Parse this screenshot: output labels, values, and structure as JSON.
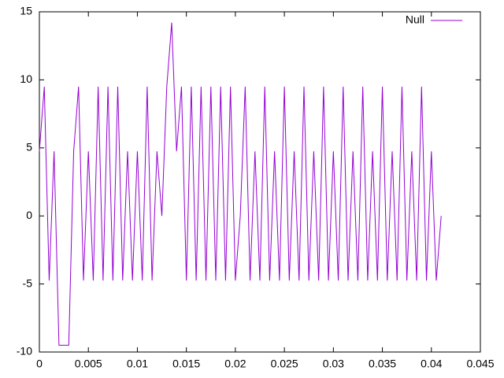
{
  "chart_data": {
    "type": "line",
    "x": [
      0,
      0.0005,
      0.001,
      0.0015,
      0.002,
      0.0025,
      0.003,
      0.0035,
      0.004,
      0.0045,
      0.005,
      0.0055,
      0.006,
      0.0065,
      0.007,
      0.0075,
      0.008,
      0.0085,
      0.009,
      0.0095,
      0.01,
      0.0105,
      0.011,
      0.0115,
      0.012,
      0.0125,
      0.013,
      0.0135,
      0.014,
      0.0145,
      0.015,
      0.0155,
      0.016,
      0.0165,
      0.017,
      0.0175,
      0.018,
      0.0185,
      0.019,
      0.0195,
      0.02,
      0.0205,
      0.021,
      0.0215,
      0.022,
      0.0225,
      0.023,
      0.0235,
      0.024,
      0.0245,
      0.025,
      0.0255,
      0.026,
      0.0265,
      0.027,
      0.0275,
      0.028,
      0.0285,
      0.029,
      0.0295,
      0.03,
      0.0305,
      0.031,
      0.0315,
      0.032,
      0.0325,
      0.033,
      0.0335,
      0.034,
      0.0345,
      0.035,
      0.0355,
      0.036,
      0.0365,
      0.037,
      0.0375,
      0.038,
      0.0385,
      0.039,
      0.0395,
      0.04,
      0.0405,
      0.041
    ],
    "series": [
      {
        "name": "Null",
        "color": "#9400d3",
        "values": [
          4.75,
          9.5,
          -4.75,
          4.75,
          -9.5,
          -9.5,
          -9.5,
          4.75,
          9.5,
          -4.75,
          4.75,
          -4.75,
          9.5,
          -4.75,
          9.5,
          -4.75,
          9.5,
          -4.75,
          4.75,
          -4.75,
          4.75,
          -4.75,
          9.5,
          -4.75,
          4.75,
          0,
          9.5,
          14.2,
          4.75,
          9.5,
          -4.75,
          9.5,
          -4.75,
          9.5,
          -4.75,
          9.5,
          -4.75,
          9.5,
          -4.75,
          9.5,
          -4.75,
          0,
          9.5,
          -4.75,
          4.75,
          -4.75,
          9.5,
          -4.75,
          4.75,
          -4.75,
          9.5,
          -4.75,
          4.75,
          -4.75,
          9.5,
          -4.75,
          4.75,
          -4.75,
          9.5,
          -4.75,
          4.75,
          -4.75,
          9.5,
          -4.75,
          4.75,
          -4.75,
          9.5,
          -4.75,
          4.75,
          -4.75,
          9.5,
          -4.75,
          4.75,
          -4.75,
          9.5,
          -4.75,
          4.75,
          -4.75,
          9.5,
          -4.75,
          4.75,
          -4.75,
          0
        ]
      }
    ],
    "xlim": [
      0,
      0.045
    ],
    "xticks": [
      0,
      0.005,
      0.01,
      0.015,
      0.02,
      0.025,
      0.03,
      0.035,
      0.04,
      0.045
    ],
    "ylim": [
      -10,
      15
    ],
    "yticks": [
      -10,
      -5,
      0,
      5,
      10,
      15
    ],
    "grid": false,
    "legend": "top-right"
  }
}
